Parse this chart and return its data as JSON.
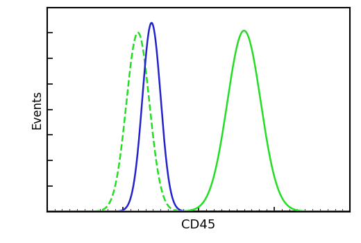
{
  "title": "",
  "xlabel": "CD45",
  "ylabel": "Events",
  "xlabel_fontsize": 13,
  "ylabel_fontsize": 12,
  "background_color": "#ffffff",
  "plot_bg_color": "#ffffff",
  "border_color": "#000000",
  "curves": [
    {
      "label": "isotype_dashed_green",
      "color": "#22dd22",
      "linestyle": "--",
      "linewidth": 1.8,
      "mu": 0.3,
      "sigma": 0.038,
      "amplitude": 0.92
    },
    {
      "label": "blue_solid",
      "color": "#2222cc",
      "linestyle": "-",
      "linewidth": 1.8,
      "mu": 0.345,
      "sigma": 0.03,
      "amplitude": 0.97
    },
    {
      "label": "green_solid",
      "color": "#22dd22",
      "linestyle": "-",
      "linewidth": 1.8,
      "mu": 0.65,
      "sigma": 0.055,
      "amplitude": 0.93
    }
  ],
  "xlim": [
    0.0,
    1.0
  ],
  "ylim": [
    0.0,
    1.05
  ],
  "figsize": [
    5.2,
    3.5
  ],
  "dpi": 100
}
